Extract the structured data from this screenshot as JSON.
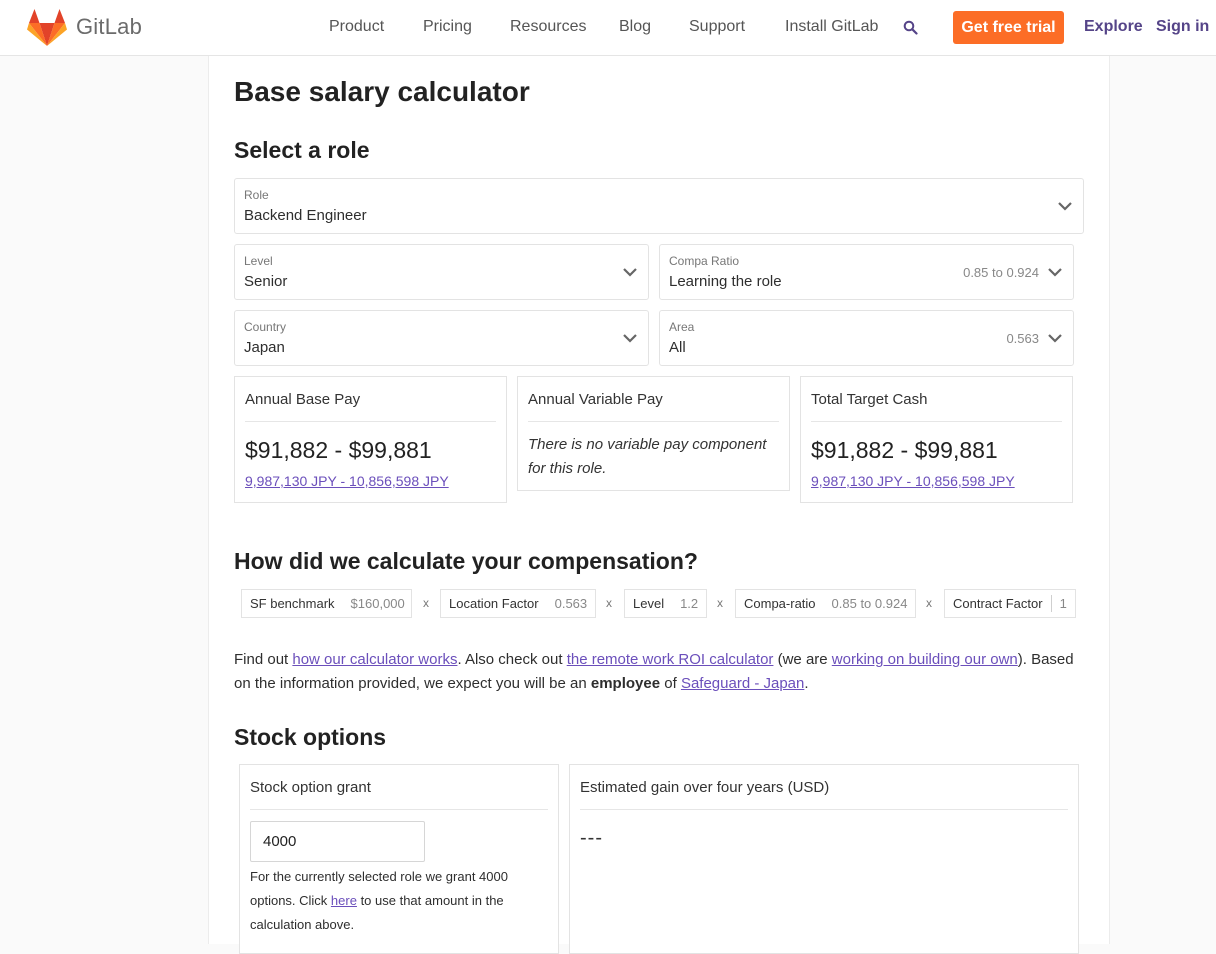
{
  "header": {
    "logo_text": "GitLab",
    "nav": [
      "Product",
      "Pricing",
      "Resources",
      "Blog",
      "Support",
      "Install GitLab"
    ],
    "trial_label": "Get free trial",
    "explore_label": "Explore",
    "signin_label": "Sign in",
    "accent": "#fc6d26"
  },
  "page": {
    "title": "Base salary calculator",
    "select_heading": "Select a role"
  },
  "role": {
    "label": "Role",
    "value": "Backend Engineer"
  },
  "level": {
    "label": "Level",
    "value": "Senior"
  },
  "compa": {
    "label": "Compa Ratio",
    "value": "Learning the role",
    "hint": "0.85 to 0.924"
  },
  "country": {
    "label": "Country",
    "value": "Japan"
  },
  "area": {
    "label": "Area",
    "value": "All",
    "hint": "0.563"
  },
  "base_pay": {
    "title": "Annual Base Pay",
    "amount": "$91,882 - $99,881",
    "local": "9,987,130 JPY - 10,856,598 JPY"
  },
  "variable_pay": {
    "title": "Annual Variable Pay",
    "note": "There is no variable pay component for this role."
  },
  "total_cash": {
    "title": "Total Target Cash",
    "amount": "$91,882 - $99,881",
    "local": "9,987,130 JPY - 10,856,598 JPY"
  },
  "formula": {
    "heading": "How did we calculate your compensation?",
    "times": "x",
    "factors": [
      {
        "name": "SF benchmark",
        "value": "$160,000"
      },
      {
        "name": "Location Factor",
        "value": "0.563"
      },
      {
        "name": "Level",
        "value": "1.2"
      },
      {
        "name": "Compa-ratio",
        "value": "0.85 to 0.924"
      },
      {
        "name": "Contract Factor",
        "value": "1"
      }
    ]
  },
  "info": {
    "t1": "Find out ",
    "link1": "how our calculator works",
    "t2": ". Also check out ",
    "link2": "the remote work ROI calculator",
    "t3": " (we are ",
    "link3": "working on building our own",
    "t4": "). Based on the information provided, we expect you will be an ",
    "bold": "employee",
    "t5": " of ",
    "link4": "Safeguard - Japan",
    "t6": "."
  },
  "stock": {
    "heading": "Stock options",
    "grant_title": "Stock option grant",
    "grant_value": "4000",
    "note_a": "For the currently selected role we grant 4000 options. Click ",
    "note_link": "here",
    "note_b": " to use that amount in the calculation above.",
    "gain_title": "Estimated gain over four years (USD)",
    "gain_value": "---"
  }
}
